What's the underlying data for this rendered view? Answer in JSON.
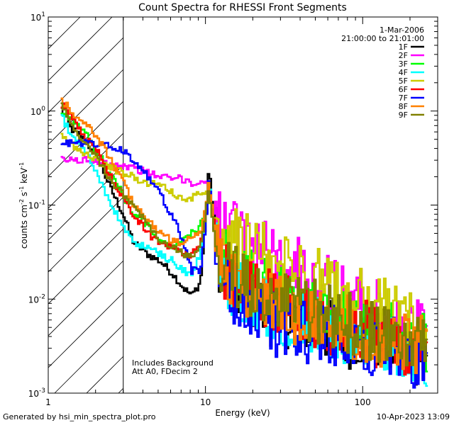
{
  "chart_data": {
    "type": "line",
    "title": "Count Spectra for RHESSI Front Segments",
    "xlabel": "Energy (keV)",
    "ylabel_main": "counts cm",
    "ylabel_sup1": "-2",
    "ylabel_mid1": " s",
    "ylabel_sup2": "-1",
    "ylabel_mid2": " keV",
    "ylabel_sup3": "-1",
    "x_scale": "log",
    "y_scale": "log",
    "xlim": [
      1,
      300
    ],
    "ylim": [
      0.001,
      10
    ],
    "x_ticks": [
      {
        "value": 1,
        "label": "1"
      },
      {
        "value": 10,
        "label": "10"
      },
      {
        "value": 100,
        "label": "100"
      }
    ],
    "y_ticks": [
      {
        "value": 0.001,
        "base": "10",
        "exp": "-3"
      },
      {
        "value": 0.01,
        "base": "10",
        "exp": "-2"
      },
      {
        "value": 0.1,
        "base": "10",
        "exp": "-1"
      },
      {
        "value": 1,
        "base": "10",
        "exp": "0"
      },
      {
        "value": 10,
        "base": "10",
        "exp": "1"
      }
    ],
    "hatched_region": {
      "x_from": 1,
      "x_to": 3
    },
    "date_label": "1-Mar-2006",
    "time_label": "21:00:00 to 21:01:00",
    "note_lines": [
      "Includes Background",
      "Att A0, FDecim 2"
    ],
    "series": [
      {
        "name": "1F",
        "color": "#000000",
        "values": [
          [
            1.2,
            1.1
          ],
          [
            1.4,
            0.65
          ],
          [
            1.7,
            0.5
          ],
          [
            2.1,
            0.3
          ],
          [
            2.5,
            0.15
          ],
          [
            3.0,
            0.08
          ],
          [
            3.5,
            0.04
          ],
          [
            4.3,
            0.03
          ],
          [
            5.2,
            0.025
          ],
          [
            6.3,
            0.018
          ],
          [
            7.3,
            0.013
          ],
          [
            8.2,
            0.011
          ],
          [
            9.3,
            0.015
          ],
          [
            10.2,
            0.09
          ],
          [
            10.5,
            0.25
          ],
          [
            11.0,
            0.12
          ],
          [
            12.0,
            0.03
          ],
          [
            13.5,
            0.015
          ],
          [
            16,
            0.012
          ],
          [
            20,
            0.01
          ],
          [
            25,
            0.007
          ],
          [
            30,
            0.007
          ],
          [
            40,
            0.006
          ],
          [
            55,
            0.005
          ],
          [
            70,
            0.004
          ],
          [
            90,
            0.004
          ],
          [
            120,
            0.004
          ],
          [
            160,
            0.003
          ],
          [
            200,
            0.003
          ],
          [
            260,
            0.002
          ]
        ]
      },
      {
        "name": "2F",
        "color": "#ff00ff",
        "values": [
          [
            1.2,
            0.3
          ],
          [
            1.7,
            0.3
          ],
          [
            2.1,
            0.29
          ],
          [
            2.5,
            0.28
          ],
          [
            3.0,
            0.26
          ],
          [
            3.5,
            0.25
          ],
          [
            4.3,
            0.22
          ],
          [
            5.2,
            0.2
          ],
          [
            6.3,
            0.19
          ],
          [
            7.3,
            0.19
          ],
          [
            8.2,
            0.17
          ],
          [
            9.3,
            0.17
          ],
          [
            10.2,
            0.18
          ],
          [
            10.5,
            0.17
          ],
          [
            11.0,
            0.1
          ],
          [
            12.0,
            0.07
          ],
          [
            13.5,
            0.06
          ],
          [
            16,
            0.045
          ],
          [
            20,
            0.04
          ],
          [
            25,
            0.03
          ],
          [
            30,
            0.025
          ],
          [
            40,
            0.02
          ],
          [
            55,
            0.015
          ],
          [
            70,
            0.012
          ],
          [
            90,
            0.01
          ],
          [
            120,
            0.008
          ],
          [
            160,
            0.006
          ],
          [
            200,
            0.005
          ],
          [
            260,
            0.004
          ]
        ]
      },
      {
        "name": "3F",
        "color": "#00ff00",
        "values": [
          [
            1.2,
            1.0
          ],
          [
            1.4,
            0.85
          ],
          [
            1.7,
            0.6
          ],
          [
            2.1,
            0.35
          ],
          [
            2.5,
            0.2
          ],
          [
            3.0,
            0.13
          ],
          [
            3.5,
            0.08
          ],
          [
            4.3,
            0.06
          ],
          [
            5.2,
            0.04
          ],
          [
            6.3,
            0.035
          ],
          [
            7.3,
            0.045
          ],
          [
            8.2,
            0.05
          ],
          [
            9.3,
            0.06
          ],
          [
            10.2,
            0.1
          ],
          [
            10.5,
            0.13
          ],
          [
            11.0,
            0.09
          ],
          [
            12.0,
            0.04
          ],
          [
            13.5,
            0.025
          ],
          [
            16,
            0.02
          ],
          [
            20,
            0.015
          ],
          [
            25,
            0.012
          ],
          [
            30,
            0.01
          ],
          [
            40,
            0.009
          ],
          [
            55,
            0.007
          ],
          [
            70,
            0.006
          ],
          [
            90,
            0.005
          ],
          [
            120,
            0.005
          ],
          [
            160,
            0.004
          ],
          [
            200,
            0.004
          ],
          [
            260,
            0.003
          ]
        ]
      },
      {
        "name": "4F",
        "color": "#00ffff",
        "values": [
          [
            1.2,
            0.95
          ],
          [
            1.4,
            0.55
          ],
          [
            1.7,
            0.4
          ],
          [
            2.1,
            0.2
          ],
          [
            2.5,
            0.1
          ],
          [
            3.0,
            0.06
          ],
          [
            3.5,
            0.04
          ],
          [
            4.3,
            0.035
          ],
          [
            5.2,
            0.03
          ],
          [
            6.3,
            0.025
          ],
          [
            7.3,
            0.02
          ],
          [
            8.2,
            0.018
          ],
          [
            9.3,
            0.03
          ],
          [
            10.2,
            0.09
          ],
          [
            10.5,
            0.2
          ],
          [
            11.0,
            0.1
          ],
          [
            12.0,
            0.025
          ],
          [
            13.5,
            0.015
          ],
          [
            16,
            0.012
          ],
          [
            20,
            0.009
          ],
          [
            25,
            0.008
          ],
          [
            30,
            0.007
          ],
          [
            40,
            0.006
          ],
          [
            55,
            0.005
          ],
          [
            70,
            0.005
          ],
          [
            90,
            0.004
          ],
          [
            120,
            0.004
          ],
          [
            160,
            0.003
          ],
          [
            200,
            0.003
          ],
          [
            260,
            0.0025
          ]
        ]
      },
      {
        "name": "5F",
        "color": "#cccc00",
        "values": [
          [
            1.2,
            0.55
          ],
          [
            1.4,
            0.45
          ],
          [
            1.7,
            0.35
          ],
          [
            2.1,
            0.3
          ],
          [
            2.5,
            0.25
          ],
          [
            3.0,
            0.22
          ],
          [
            3.5,
            0.2
          ],
          [
            4.3,
            0.17
          ],
          [
            5.2,
            0.17
          ],
          [
            6.3,
            0.13
          ],
          [
            7.3,
            0.11
          ],
          [
            8.2,
            0.12
          ],
          [
            9.3,
            0.13
          ],
          [
            10.2,
            0.15
          ],
          [
            10.5,
            0.13
          ],
          [
            11.0,
            0.08
          ],
          [
            12.0,
            0.06
          ],
          [
            13.5,
            0.05
          ],
          [
            16,
            0.04
          ],
          [
            20,
            0.035
          ],
          [
            25,
            0.03
          ],
          [
            30,
            0.025
          ],
          [
            40,
            0.02
          ],
          [
            55,
            0.015
          ],
          [
            70,
            0.013
          ],
          [
            90,
            0.01
          ],
          [
            120,
            0.009
          ],
          [
            160,
            0.007
          ],
          [
            200,
            0.006
          ],
          [
            260,
            0.005
          ]
        ]
      },
      {
        "name": "6F",
        "color": "#ff0000",
        "values": [
          [
            1.2,
            1.2
          ],
          [
            1.4,
            0.9
          ],
          [
            1.7,
            0.55
          ],
          [
            2.1,
            0.35
          ],
          [
            2.5,
            0.2
          ],
          [
            3.0,
            0.12
          ],
          [
            3.5,
            0.08
          ],
          [
            4.3,
            0.05
          ],
          [
            5.2,
            0.04
          ],
          [
            6.3,
            0.035
          ],
          [
            7.3,
            0.03
          ],
          [
            8.2,
            0.03
          ],
          [
            9.3,
            0.04
          ],
          [
            10.2,
            0.1
          ],
          [
            10.5,
            0.16
          ],
          [
            11.0,
            0.09
          ],
          [
            12.0,
            0.035
          ],
          [
            13.5,
            0.02
          ],
          [
            16,
            0.015
          ],
          [
            20,
            0.012
          ],
          [
            25,
            0.01
          ],
          [
            30,
            0.009
          ],
          [
            40,
            0.008
          ],
          [
            55,
            0.006
          ],
          [
            70,
            0.005
          ],
          [
            90,
            0.005
          ],
          [
            120,
            0.004
          ],
          [
            160,
            0.004
          ],
          [
            200,
            0.003
          ],
          [
            260,
            0.003
          ]
        ]
      },
      {
        "name": "7F",
        "color": "#0000ff",
        "values": [
          [
            1.2,
            0.45
          ],
          [
            1.7,
            0.46
          ],
          [
            2.1,
            0.44
          ],
          [
            2.5,
            0.42
          ],
          [
            3.0,
            0.38
          ],
          [
            3.5,
            0.3
          ],
          [
            4.3,
            0.2
          ],
          [
            5.2,
            0.13
          ],
          [
            6.3,
            0.07
          ],
          [
            7.3,
            0.04
          ],
          [
            8.2,
            0.02
          ],
          [
            9.3,
            0.02
          ],
          [
            10.2,
            0.08
          ],
          [
            10.5,
            0.2
          ],
          [
            11.0,
            0.1
          ],
          [
            12.0,
            0.02
          ],
          [
            13.5,
            0.012
          ],
          [
            16,
            0.01
          ],
          [
            20,
            0.008
          ],
          [
            25,
            0.006
          ],
          [
            30,
            0.005
          ],
          [
            40,
            0.005
          ],
          [
            55,
            0.004
          ],
          [
            70,
            0.004
          ],
          [
            90,
            0.003
          ],
          [
            120,
            0.003
          ],
          [
            160,
            0.003
          ],
          [
            200,
            0.0025
          ],
          [
            260,
            0.002
          ]
        ]
      },
      {
        "name": "8F",
        "color": "#ff8000",
        "values": [
          [
            1.2,
            1.35
          ],
          [
            1.4,
            1.0
          ],
          [
            1.7,
            0.75
          ],
          [
            2.1,
            0.5
          ],
          [
            2.5,
            0.3
          ],
          [
            3.0,
            0.18
          ],
          [
            3.5,
            0.1
          ],
          [
            4.3,
            0.07
          ],
          [
            5.2,
            0.05
          ],
          [
            6.3,
            0.04
          ],
          [
            7.3,
            0.04
          ],
          [
            8.2,
            0.045
          ],
          [
            9.3,
            0.05
          ],
          [
            10.2,
            0.11
          ],
          [
            10.5,
            0.18
          ],
          [
            11.0,
            0.1
          ],
          [
            12.0,
            0.03
          ],
          [
            13.5,
            0.02
          ],
          [
            16,
            0.014
          ],
          [
            20,
            0.012
          ],
          [
            25,
            0.01
          ],
          [
            30,
            0.008
          ],
          [
            40,
            0.007
          ],
          [
            55,
            0.006
          ],
          [
            70,
            0.005
          ],
          [
            90,
            0.005
          ],
          [
            120,
            0.004
          ],
          [
            160,
            0.004
          ],
          [
            200,
            0.003
          ],
          [
            260,
            0.003
          ]
        ]
      },
      {
        "name": "9F",
        "color": "#808000",
        "values": [
          [
            1.2,
            1.15
          ],
          [
            1.4,
            0.75
          ],
          [
            1.7,
            0.45
          ],
          [
            2.1,
            0.3
          ],
          [
            2.5,
            0.18
          ],
          [
            3.0,
            0.13
          ],
          [
            3.5,
            0.1
          ],
          [
            4.3,
            0.06
          ],
          [
            5.2,
            0.04
          ],
          [
            6.3,
            0.035
          ],
          [
            7.3,
            0.03
          ],
          [
            8.2,
            0.03
          ],
          [
            9.3,
            0.035
          ],
          [
            10.2,
            0.1
          ],
          [
            10.5,
            0.14
          ],
          [
            11.0,
            0.08
          ],
          [
            12.0,
            0.03
          ],
          [
            13.5,
            0.02
          ],
          [
            16,
            0.016
          ],
          [
            20,
            0.013
          ],
          [
            25,
            0.011
          ],
          [
            30,
            0.009
          ],
          [
            40,
            0.008
          ],
          [
            55,
            0.007
          ],
          [
            70,
            0.006
          ],
          [
            90,
            0.005
          ],
          [
            120,
            0.005
          ],
          [
            160,
            0.004
          ],
          [
            200,
            0.004
          ],
          [
            260,
            0.003
          ]
        ]
      }
    ]
  },
  "footer": {
    "left": "Generated by hsi_min_spectra_plot.pro",
    "right": "10-Apr-2023 13:09"
  }
}
